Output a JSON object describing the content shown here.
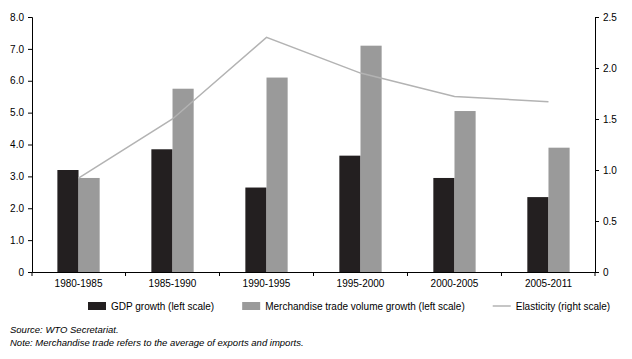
{
  "chart_data": {
    "type": "bar",
    "categories": [
      "1980-1985",
      "1985-1990",
      "1990-1995",
      "1995-2000",
      "2000-2005",
      "2005-2011"
    ],
    "series": [
      {
        "name": "GDP growth (left scale)",
        "type": "bar",
        "color": "#231f20",
        "values": [
          3.2,
          3.85,
          2.65,
          3.65,
          2.95,
          2.35
        ]
      },
      {
        "name": "Merchandise trade volume growth (left scale)",
        "type": "bar",
        "color": "#9a9a9a",
        "values": [
          2.95,
          5.75,
          6.1,
          7.1,
          5.05,
          3.9
        ]
      },
      {
        "name": "Elasticity (right scale)",
        "type": "line",
        "axis": "y2",
        "color": "#b3b3b3",
        "values": [
          0.92,
          1.5,
          2.3,
          1.95,
          1.72,
          1.67
        ]
      }
    ],
    "ylim": [
      0,
      8
    ],
    "yticks": [
      0,
      {
        "value": 1,
        "label": "1.0"
      },
      {
        "value": 2,
        "label": "2.0"
      },
      {
        "value": 3,
        "label": "3.0"
      },
      {
        "value": 4,
        "label": "4.0"
      },
      {
        "value": 5,
        "label": "5.0"
      },
      {
        "value": 6,
        "label": "6.0"
      },
      {
        "value": 7,
        "label": "7.0"
      },
      {
        "value": 8,
        "label": "8.0"
      }
    ],
    "y2lim": [
      0,
      2.5
    ],
    "y2ticks": [
      0,
      0.5,
      {
        "value": 1,
        "label": "1.0"
      },
      1.5,
      {
        "value": 2,
        "label": "2.0"
      },
      2.5
    ],
    "legend": "bottom",
    "annotations": [
      "Source: WTO Secretariat.",
      "Note: Merchandise trade refers to the average of exports and imports."
    ]
  }
}
